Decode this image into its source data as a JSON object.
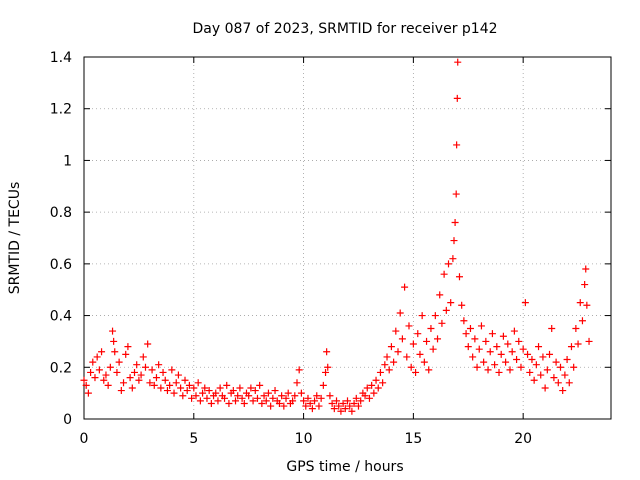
{
  "chart_data": {
    "type": "scatter",
    "title": "Day 087 of 2023, SRMTID for receiver p142",
    "xlabel": "GPS time / hours",
    "ylabel": "SRMTID / TECUs",
    "xlim": [
      0,
      24
    ],
    "ylim": [
      0,
      1.4
    ],
    "grid": true,
    "x_ticks": [
      0,
      5,
      10,
      15,
      20
    ],
    "x_tick_labels": [
      "0",
      "5",
      "10",
      "15",
      "20"
    ],
    "y_ticks": [
      0,
      0.2,
      0.4,
      0.6,
      0.8,
      1.0,
      1.2,
      1.4
    ],
    "y_tick_labels": [
      "0",
      "0.2",
      "0.4",
      "0.6",
      "0.8",
      "1",
      "1.2",
      "1.4"
    ],
    "series": [
      {
        "name": "SRMTID",
        "marker": "plus",
        "color": "#ff0000",
        "points": [
          [
            0.0,
            0.15
          ],
          [
            0.1,
            0.13
          ],
          [
            0.2,
            0.1
          ],
          [
            0.3,
            0.18
          ],
          [
            0.4,
            0.22
          ],
          [
            0.5,
            0.16
          ],
          [
            0.6,
            0.24
          ],
          [
            0.7,
            0.19
          ],
          [
            0.8,
            0.26
          ],
          [
            0.9,
            0.15
          ],
          [
            1.0,
            0.17
          ],
          [
            1.1,
            0.13
          ],
          [
            1.2,
            0.2
          ],
          [
            1.3,
            0.34
          ],
          [
            1.35,
            0.3
          ],
          [
            1.4,
            0.26
          ],
          [
            1.5,
            0.18
          ],
          [
            1.6,
            0.22
          ],
          [
            1.7,
            0.11
          ],
          [
            1.8,
            0.14
          ],
          [
            1.9,
            0.25
          ],
          [
            2.0,
            0.28
          ],
          [
            2.1,
            0.16
          ],
          [
            2.2,
            0.12
          ],
          [
            2.3,
            0.18
          ],
          [
            2.4,
            0.21
          ],
          [
            2.5,
            0.15
          ],
          [
            2.6,
            0.17
          ],
          [
            2.7,
            0.24
          ],
          [
            2.8,
            0.2
          ],
          [
            2.9,
            0.29
          ],
          [
            3.0,
            0.14
          ],
          [
            3.1,
            0.19
          ],
          [
            3.2,
            0.13
          ],
          [
            3.3,
            0.16
          ],
          [
            3.4,
            0.21
          ],
          [
            3.5,
            0.12
          ],
          [
            3.6,
            0.18
          ],
          [
            3.7,
            0.15
          ],
          [
            3.8,
            0.11
          ],
          [
            3.9,
            0.13
          ],
          [
            4.0,
            0.19
          ],
          [
            4.1,
            0.1
          ],
          [
            4.2,
            0.14
          ],
          [
            4.3,
            0.17
          ],
          [
            4.4,
            0.12
          ],
          [
            4.5,
            0.09
          ],
          [
            4.6,
            0.15
          ],
          [
            4.7,
            0.11
          ],
          [
            4.8,
            0.13
          ],
          [
            4.9,
            0.08
          ],
          [
            5.0,
            0.12
          ],
          [
            5.1,
            0.09
          ],
          [
            5.2,
            0.14
          ],
          [
            5.3,
            0.07
          ],
          [
            5.4,
            0.1
          ],
          [
            5.5,
            0.12
          ],
          [
            5.6,
            0.08
          ],
          [
            5.7,
            0.11
          ],
          [
            5.8,
            0.06
          ],
          [
            5.9,
            0.09
          ],
          [
            6.0,
            0.1
          ],
          [
            6.1,
            0.07
          ],
          [
            6.2,
            0.12
          ],
          [
            6.3,
            0.09
          ],
          [
            6.4,
            0.08
          ],
          [
            6.5,
            0.13
          ],
          [
            6.6,
            0.06
          ],
          [
            6.7,
            0.1
          ],
          [
            6.8,
            0.11
          ],
          [
            6.9,
            0.07
          ],
          [
            7.0,
            0.09
          ],
          [
            7.1,
            0.12
          ],
          [
            7.2,
            0.08
          ],
          [
            7.3,
            0.06
          ],
          [
            7.4,
            0.1
          ],
          [
            7.5,
            0.09
          ],
          [
            7.6,
            0.12
          ],
          [
            7.7,
            0.07
          ],
          [
            7.8,
            0.11
          ],
          [
            7.9,
            0.08
          ],
          [
            8.0,
            0.13
          ],
          [
            8.1,
            0.06
          ],
          [
            8.2,
            0.09
          ],
          [
            8.3,
            0.07
          ],
          [
            8.4,
            0.1
          ],
          [
            8.5,
            0.05
          ],
          [
            8.6,
            0.08
          ],
          [
            8.7,
            0.11
          ],
          [
            8.8,
            0.07
          ],
          [
            8.9,
            0.06
          ],
          [
            9.0,
            0.09
          ],
          [
            9.1,
            0.05
          ],
          [
            9.2,
            0.08
          ],
          [
            9.3,
            0.1
          ],
          [
            9.4,
            0.06
          ],
          [
            9.5,
            0.07
          ],
          [
            9.6,
            0.09
          ],
          [
            9.7,
            0.14
          ],
          [
            9.8,
            0.19
          ],
          [
            9.9,
            0.1
          ],
          [
            10.0,
            0.07
          ],
          [
            10.1,
            0.05
          ],
          [
            10.2,
            0.08
          ],
          [
            10.3,
            0.06
          ],
          [
            10.4,
            0.04
          ],
          [
            10.5,
            0.07
          ],
          [
            10.6,
            0.09
          ],
          [
            10.7,
            0.05
          ],
          [
            10.8,
            0.08
          ],
          [
            10.9,
            0.13
          ],
          [
            11.0,
            0.18
          ],
          [
            11.05,
            0.26
          ],
          [
            11.1,
            0.2
          ],
          [
            11.2,
            0.09
          ],
          [
            11.3,
            0.06
          ],
          [
            11.4,
            0.04
          ],
          [
            11.5,
            0.07
          ],
          [
            11.6,
            0.05
          ],
          [
            11.7,
            0.03
          ],
          [
            11.8,
            0.06
          ],
          [
            11.9,
            0.04
          ],
          [
            12.0,
            0.07
          ],
          [
            12.1,
            0.05
          ],
          [
            12.2,
            0.03
          ],
          [
            12.3,
            0.06
          ],
          [
            12.4,
            0.08
          ],
          [
            12.5,
            0.05
          ],
          [
            12.6,
            0.07
          ],
          [
            12.7,
            0.1
          ],
          [
            12.8,
            0.09
          ],
          [
            12.9,
            0.12
          ],
          [
            13.0,
            0.08
          ],
          [
            13.1,
            0.13
          ],
          [
            13.2,
            0.1
          ],
          [
            13.3,
            0.15
          ],
          [
            13.4,
            0.12
          ],
          [
            13.5,
            0.18
          ],
          [
            13.6,
            0.14
          ],
          [
            13.7,
            0.21
          ],
          [
            13.8,
            0.24
          ],
          [
            13.9,
            0.19
          ],
          [
            14.0,
            0.28
          ],
          [
            14.1,
            0.22
          ],
          [
            14.2,
            0.34
          ],
          [
            14.3,
            0.26
          ],
          [
            14.4,
            0.41
          ],
          [
            14.5,
            0.31
          ],
          [
            14.6,
            0.51
          ],
          [
            14.7,
            0.24
          ],
          [
            14.8,
            0.36
          ],
          [
            14.9,
            0.2
          ],
          [
            15.0,
            0.29
          ],
          [
            15.1,
            0.18
          ],
          [
            15.2,
            0.33
          ],
          [
            15.3,
            0.25
          ],
          [
            15.4,
            0.4
          ],
          [
            15.5,
            0.22
          ],
          [
            15.6,
            0.3
          ],
          [
            15.7,
            0.19
          ],
          [
            15.8,
            0.35
          ],
          [
            15.9,
            0.27
          ],
          [
            16.0,
            0.4
          ],
          [
            16.1,
            0.31
          ],
          [
            16.2,
            0.48
          ],
          [
            16.3,
            0.37
          ],
          [
            16.4,
            0.56
          ],
          [
            16.5,
            0.42
          ],
          [
            16.6,
            0.6
          ],
          [
            16.7,
            0.45
          ],
          [
            16.8,
            0.62
          ],
          [
            16.85,
            0.69
          ],
          [
            16.9,
            0.76
          ],
          [
            16.95,
            0.87
          ],
          [
            16.97,
            1.06
          ],
          [
            17.0,
            1.24
          ],
          [
            17.02,
            1.38
          ],
          [
            17.1,
            0.55
          ],
          [
            17.2,
            0.44
          ],
          [
            17.3,
            0.38
          ],
          [
            17.4,
            0.33
          ],
          [
            17.5,
            0.28
          ],
          [
            17.6,
            0.35
          ],
          [
            17.7,
            0.24
          ],
          [
            17.8,
            0.31
          ],
          [
            17.9,
            0.2
          ],
          [
            18.0,
            0.27
          ],
          [
            18.1,
            0.36
          ],
          [
            18.2,
            0.22
          ],
          [
            18.3,
            0.3
          ],
          [
            18.4,
            0.19
          ],
          [
            18.5,
            0.26
          ],
          [
            18.6,
            0.33
          ],
          [
            18.7,
            0.21
          ],
          [
            18.8,
            0.28
          ],
          [
            18.9,
            0.18
          ],
          [
            19.0,
            0.25
          ],
          [
            19.1,
            0.32
          ],
          [
            19.2,
            0.22
          ],
          [
            19.3,
            0.29
          ],
          [
            19.4,
            0.19
          ],
          [
            19.5,
            0.26
          ],
          [
            19.6,
            0.34
          ],
          [
            19.7,
            0.23
          ],
          [
            19.8,
            0.3
          ],
          [
            19.9,
            0.2
          ],
          [
            20.0,
            0.27
          ],
          [
            20.1,
            0.45
          ],
          [
            20.2,
            0.25
          ],
          [
            20.3,
            0.18
          ],
          [
            20.4,
            0.23
          ],
          [
            20.5,
            0.15
          ],
          [
            20.6,
            0.21
          ],
          [
            20.7,
            0.28
          ],
          [
            20.8,
            0.17
          ],
          [
            20.9,
            0.24
          ],
          [
            21.0,
            0.12
          ],
          [
            21.1,
            0.19
          ],
          [
            21.2,
            0.25
          ],
          [
            21.3,
            0.35
          ],
          [
            21.4,
            0.16
          ],
          [
            21.5,
            0.22
          ],
          [
            21.6,
            0.14
          ],
          [
            21.7,
            0.2
          ],
          [
            21.8,
            0.11
          ],
          [
            21.9,
            0.17
          ],
          [
            22.0,
            0.23
          ],
          [
            22.1,
            0.14
          ],
          [
            22.2,
            0.28
          ],
          [
            22.3,
            0.2
          ],
          [
            22.4,
            0.35
          ],
          [
            22.5,
            0.29
          ],
          [
            22.6,
            0.45
          ],
          [
            22.7,
            0.38
          ],
          [
            22.8,
            0.52
          ],
          [
            22.85,
            0.58
          ],
          [
            22.9,
            0.44
          ],
          [
            23.0,
            0.3
          ]
        ]
      }
    ]
  }
}
